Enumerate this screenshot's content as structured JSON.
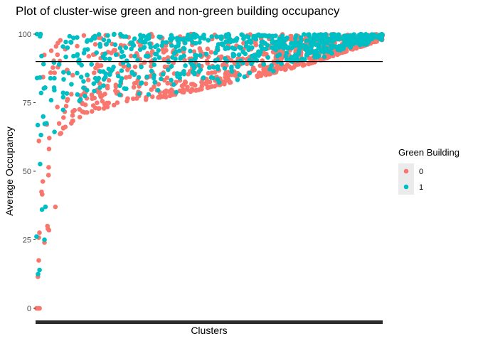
{
  "chart_data": {
    "type": "scatter",
    "title": "Plot of cluster-wise green and non-green building occupancy",
    "xlabel": "Clusters",
    "ylabel": "Average Occupancy",
    "ylim": [
      0,
      100
    ],
    "yticks": [
      0,
      25,
      50,
      75,
      100
    ],
    "xlim": [
      0,
      700
    ],
    "grid": false,
    "hline": 90,
    "legend": {
      "title": "Green Building",
      "placement": "right",
      "entries": [
        {
          "label": "0",
          "color": "#F8766D"
        },
        {
          "label": "1",
          "color": "#00BFC4"
        }
      ]
    },
    "series": [
      {
        "name": "0",
        "color": "#F8766D"
      },
      {
        "name": "1",
        "color": "#00BFC4"
      }
    ],
    "note": "x-axis is categorical (cluster id); tick labels overplotted and unreadable"
  }
}
